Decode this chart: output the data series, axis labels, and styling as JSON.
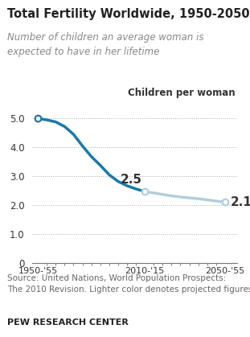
{
  "title": "Total Fertility Worldwide, 1950-2050",
  "subtitle": "Number of children an average woman is\nexpected to have in her lifetime",
  "annotation_label": "Children per woman",
  "source_text": "Source: United Nations, World Population Prospects:\nThe 2010 Revision. Lighter color denotes projected figures.",
  "footer": "PEW RESEARCH CENTER",
  "historical_color": "#1a7aab",
  "projected_color": "#b0cfdf",
  "background_color": "#ffffff",
  "ylim": [
    0,
    5.6
  ],
  "yticks": [
    0,
    1.0,
    2.0,
    3.0,
    4.0,
    5.0
  ],
  "xtick_labels": [
    "1950-'55",
    "2010-'15",
    "2050-'55"
  ],
  "historical_x": [
    1950,
    1955,
    1960,
    1965,
    1970,
    1975,
    1980,
    1985,
    1990,
    1995,
    2000,
    2005,
    2010
  ],
  "historical_y": [
    5.0,
    4.95,
    4.88,
    4.72,
    4.45,
    4.05,
    3.68,
    3.38,
    3.05,
    2.82,
    2.67,
    2.56,
    2.47
  ],
  "projected_x": [
    2010,
    2015,
    2020,
    2025,
    2030,
    2035,
    2040,
    2045,
    2050,
    2055
  ],
  "projected_y": [
    2.47,
    2.42,
    2.37,
    2.32,
    2.28,
    2.25,
    2.22,
    2.18,
    2.14,
    2.1
  ],
  "marker_1950_x": 1950,
  "marker_1950_y": 5.0,
  "marker_2010_x": 2010,
  "marker_2010_y": 2.47,
  "marker_2055_x": 2055,
  "marker_2055_y": 2.1,
  "label_2010": "2.5",
  "label_2055": "2.1",
  "xlim": [
    1947,
    2062
  ]
}
